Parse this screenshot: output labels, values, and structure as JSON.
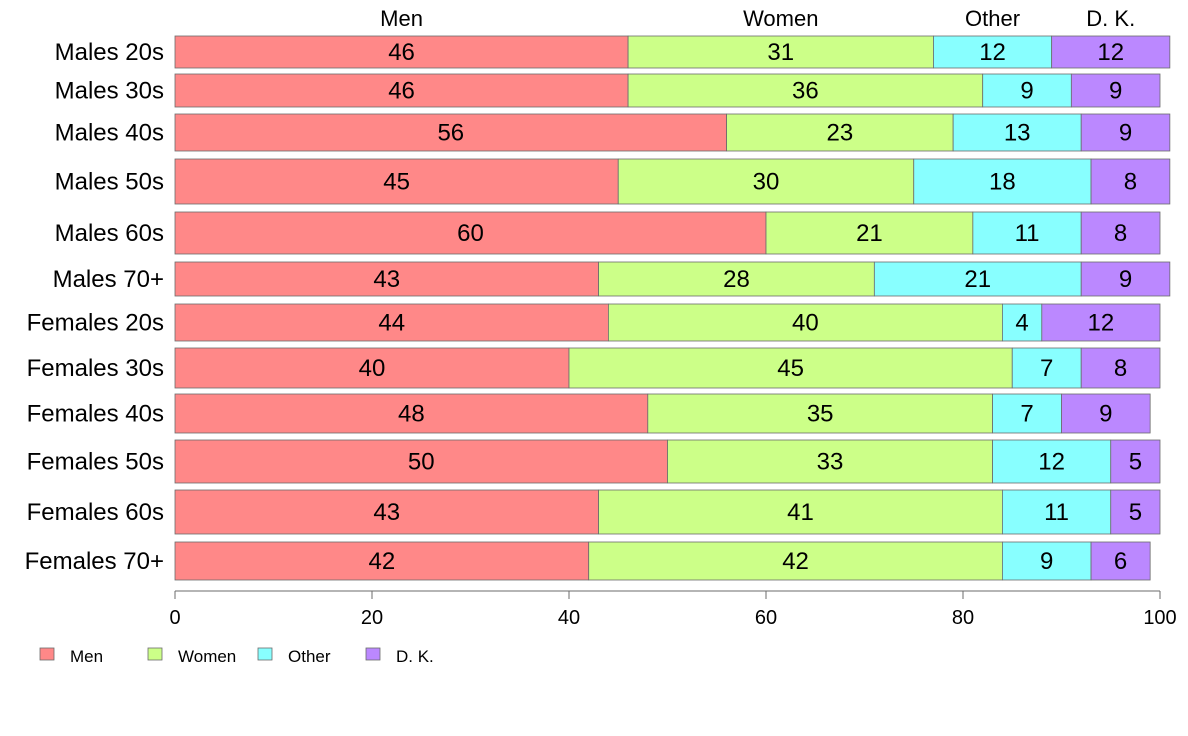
{
  "chart_data": {
    "type": "bar",
    "orientation": "horizontal",
    "stacked": true,
    "categories": [
      "Males 20s",
      "Males 30s",
      "Males 40s",
      "Males 50s",
      "Males 60s",
      "Males 70+",
      "Females 20s",
      "Females 30s",
      "Females 40s",
      "Females 50s",
      "Females 60s",
      "Females 70+"
    ],
    "series": [
      {
        "name": "Men",
        "color": "#ff8888",
        "values": [
          46,
          46,
          56,
          45,
          60,
          43,
          44,
          40,
          48,
          50,
          43,
          42
        ]
      },
      {
        "name": "Women",
        "color": "#ccff88",
        "values": [
          31,
          36,
          23,
          30,
          21,
          28,
          40,
          45,
          35,
          33,
          41,
          42
        ]
      },
      {
        "name": "Other",
        "color": "#88ffff",
        "values": [
          12,
          9,
          13,
          18,
          11,
          21,
          4,
          7,
          7,
          12,
          11,
          9
        ]
      },
      {
        "name": "D. K.",
        "color": "#bb88ff",
        "values": [
          12,
          9,
          9,
          8,
          8,
          9,
          12,
          8,
          9,
          5,
          5,
          6
        ]
      }
    ],
    "x_ticks": [
      "0",
      "20",
      "40",
      "60",
      "80",
      "100"
    ],
    "xlim": [
      0,
      100
    ],
    "grid": false,
    "legend": "bottom-left"
  }
}
